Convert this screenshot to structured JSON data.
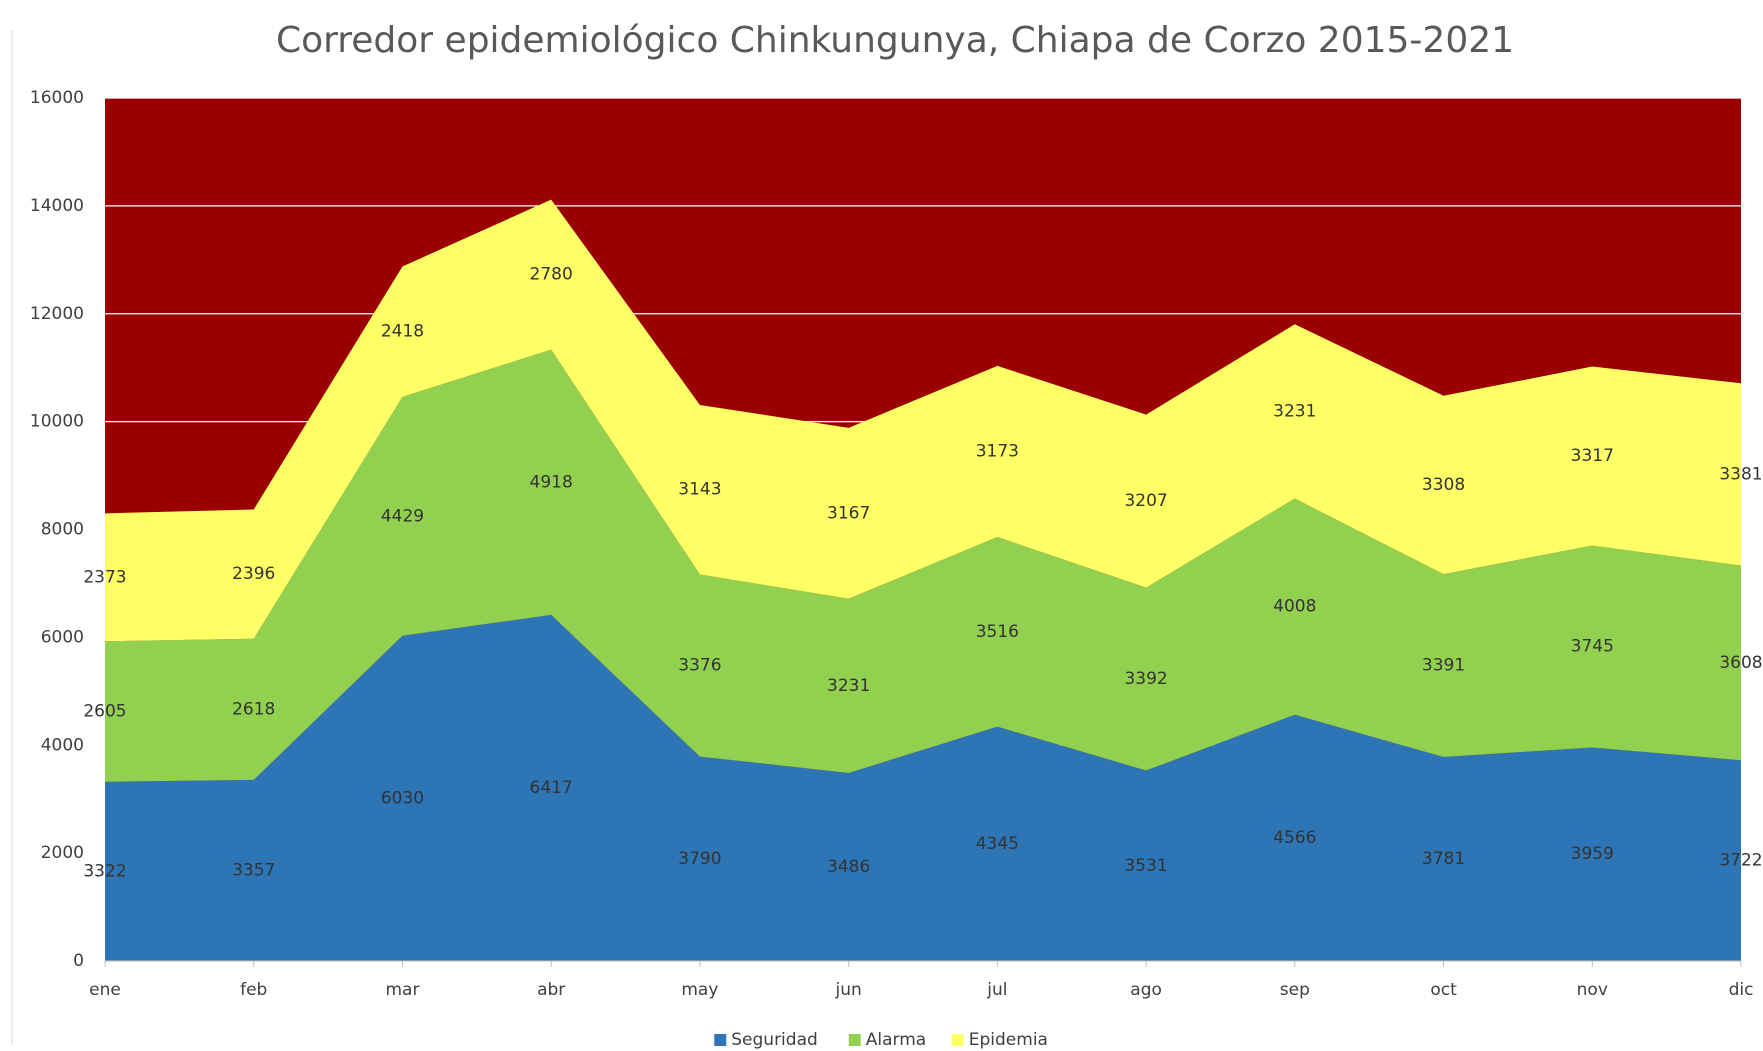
{
  "chart_data": {
    "type": "stacked_area",
    "title": "Corredor epidemiológico Chinkungunya, Chiapa de Corzo 2015-2021",
    "categories": [
      "ene",
      "feb",
      "mar",
      "abr",
      "may",
      "jun",
      "jul",
      "ago",
      "sep",
      "oct",
      "nov",
      "dic"
    ],
    "series": [
      {
        "name": "Seguridad",
        "color": "#2e75b6",
        "values": [
          3322,
          3357,
          6030,
          6417,
          3790,
          3486,
          4345,
          3531,
          4566,
          3781,
          3959,
          3722
        ]
      },
      {
        "name": "Alarma",
        "color": "#92d050",
        "values": [
          2605,
          2618,
          4429,
          4918,
          3376,
          3231,
          3516,
          3392,
          4008,
          3391,
          3745,
          3608
        ]
      },
      {
        "name": "Epidemia",
        "color": "#ffff66",
        "values": [
          2373,
          2396,
          2418,
          2780,
          3143,
          3167,
          3173,
          3207,
          3231,
          3308,
          3317,
          3381
        ]
      }
    ],
    "plot_background": "#9b0000",
    "ylim": [
      0,
      16000
    ],
    "yticks": [
      0,
      2000,
      4000,
      6000,
      8000,
      10000,
      12000,
      14000,
      16000
    ],
    "grid": true,
    "legend": "bottom"
  }
}
